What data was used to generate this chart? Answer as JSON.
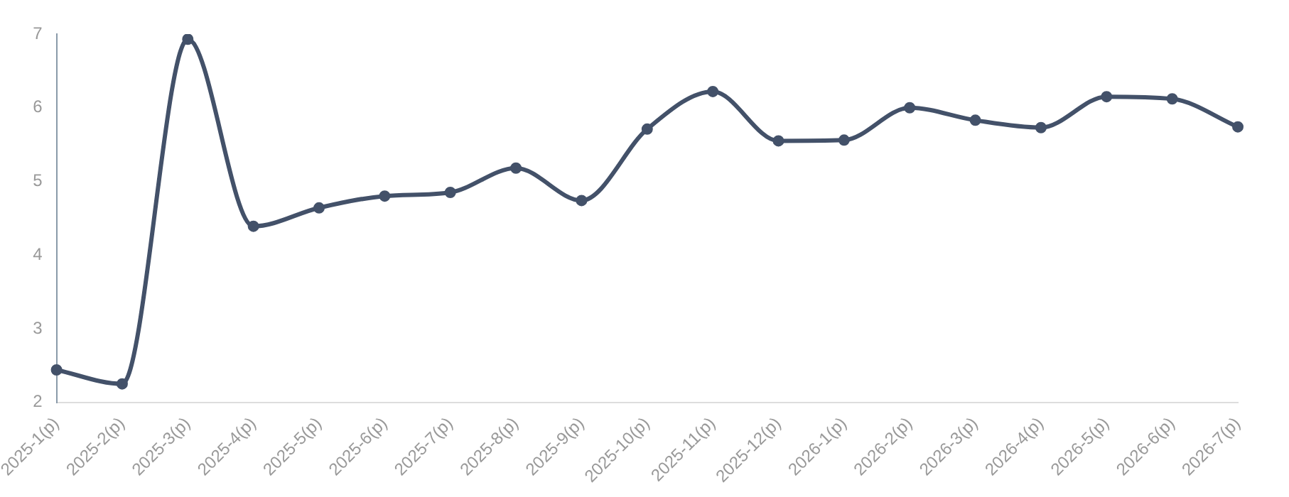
{
  "chart_data": {
    "type": "line",
    "categories": [
      "2025-1(p)",
      "2025-2(p)",
      "2025-3(p)",
      "2025-4(p)",
      "2025-5(p)",
      "2025-6(p)",
      "2025-7(p)",
      "2025-8(p)",
      "2025-9(p)",
      "2025-10(p)",
      "2025-11(p)",
      "2025-12(p)",
      "2026-1(p)",
      "2026-2(p)",
      "2026-3(p)",
      "2026-4(p)",
      "2026-5(p)",
      "2026-6(p)",
      "2026-7(p)"
    ],
    "series": [
      {
        "color": "#435169",
        "values": [
          2.44,
          2.25,
          6.93,
          4.39,
          4.64,
          4.8,
          4.85,
          5.18,
          4.74,
          5.71,
          6.22,
          5.55,
          5.56,
          6.0,
          5.83,
          5.73,
          6.15,
          6.12,
          5.74
        ]
      }
    ],
    "ylim": [
      2,
      7
    ],
    "yticks": [
      2,
      3,
      4,
      5,
      6,
      7
    ],
    "grid": false,
    "legend": false,
    "marker": "circle",
    "line_style": "solid"
  }
}
